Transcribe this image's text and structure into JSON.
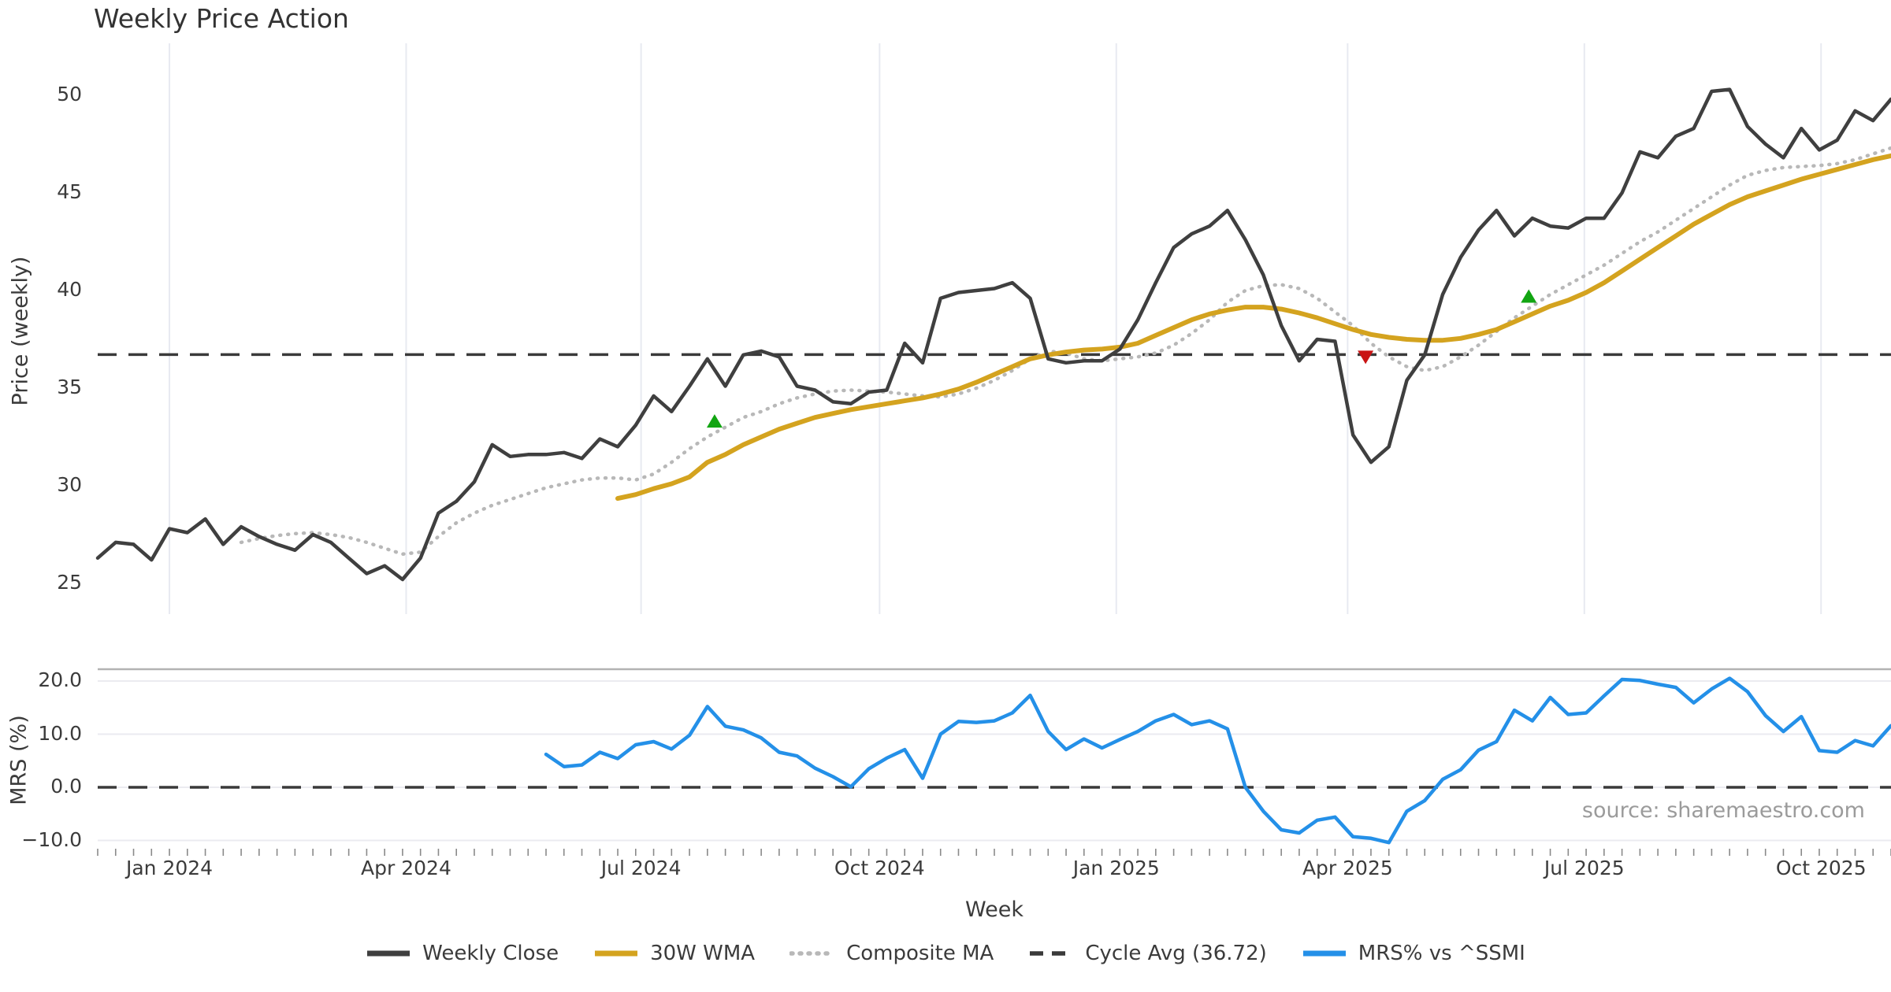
{
  "title": "Weekly Price Action",
  "source_note": "source: sharemaestro.com",
  "axes": {
    "price_label": "Price (weekly)",
    "mrs_label": "MRS (%)",
    "x_label": "Week"
  },
  "colors": {
    "weekly_close": "#3f3f3f",
    "wma_30w": "#d4a31f",
    "composite_ma": "#b8b8b8",
    "cycle_avg": "#3a3a3a",
    "mrs_line": "#2490e8",
    "buy_marker": "#12a512",
    "sell_marker": "#c91414",
    "gridline": "#e8eaf1",
    "panel_gridline": "#ebebf0",
    "panel_spine": "#b3b3b3",
    "tick_mark": "#8a8a8a"
  },
  "legend": [
    {
      "label": "Weekly Close",
      "color": "#3f3f3f",
      "style": "solid"
    },
    {
      "label": "30W WMA",
      "color": "#d4a31f",
      "style": "solid"
    },
    {
      "label": "Composite MA",
      "color": "#b8b8b8",
      "style": "dotted"
    },
    {
      "label": "Cycle Avg (36.72)",
      "color": "#3a3a3a",
      "style": "dashed"
    },
    {
      "label": "MRS% vs ^SSMI",
      "color": "#2490e8",
      "style": "solid"
    }
  ],
  "chart_data": [
    {
      "type": "line",
      "panel": "price",
      "title": "Weekly Price Action",
      "ylabel": "Price (weekly)",
      "ylim": [
        24.2,
        52.0
      ],
      "grid": "vertical-months-only",
      "yticks": [
        {
          "label": "50",
          "v": 50
        },
        {
          "label": "45",
          "v": 45
        },
        {
          "label": "40",
          "v": 40
        },
        {
          "label": "35",
          "v": 35
        },
        {
          "label": "30",
          "v": 30
        },
        {
          "label": "25",
          "v": 25
        }
      ],
      "x_months": [
        {
          "label": "Jan 2024",
          "week": 4.0
        },
        {
          "label": "Apr 2024",
          "week": 17.2
        },
        {
          "label": "Jul 2024",
          "week": 30.3
        },
        {
          "label": "Oct 2024",
          "week": 43.6
        },
        {
          "label": "Jan 2025",
          "week": 56.8
        },
        {
          "label": "Apr 2025",
          "week": 69.7
        },
        {
          "label": "Jul 2025",
          "week": 82.9
        },
        {
          "label": "Oct 2025",
          "week": 96.1
        }
      ],
      "cycle_avg": {
        "name": "Cycle Avg",
        "value": 36.72,
        "style": "dashed"
      },
      "series": [
        {
          "name": "Weekly Close",
          "style": "solid",
          "start_week": 0,
          "values": [
            26.3,
            27.1,
            27.0,
            26.2,
            27.8,
            27.6,
            28.3,
            27.0,
            27.9,
            27.4,
            27.0,
            26.7,
            27.5,
            27.1,
            26.3,
            25.5,
            25.9,
            25.2,
            26.3,
            28.6,
            29.2,
            30.2,
            32.1,
            31.5,
            31.6,
            31.6,
            31.7,
            31.4,
            32.4,
            32.0,
            33.1,
            34.6,
            33.8,
            35.1,
            36.5,
            35.1,
            36.7,
            36.9,
            36.6,
            35.1,
            34.9,
            34.3,
            34.2,
            34.8,
            34.9,
            37.3,
            36.3,
            39.6,
            39.9,
            40.0,
            40.1,
            40.4,
            39.6,
            36.5,
            36.3,
            36.4,
            36.4,
            37.0,
            38.5,
            40.4,
            42.2,
            42.9,
            43.3,
            44.1,
            42.6,
            40.8,
            38.2,
            36.4,
            37.5,
            37.4,
            32.6,
            31.2,
            32.0,
            35.4,
            36.7,
            39.8,
            41.7,
            43.1,
            44.1,
            42.8,
            43.7,
            43.3,
            43.2,
            43.7,
            43.7,
            45.0,
            47.1,
            46.8,
            47.9,
            48.3,
            50.2,
            50.3,
            48.4,
            47.5,
            46.8,
            48.3,
            47.2,
            47.7,
            49.2,
            48.7,
            49.8
          ]
        },
        {
          "name": "30W WMA",
          "style": "solid",
          "start_week": 29,
          "values": [
            29.35,
            29.55,
            29.85,
            30.1,
            30.45,
            31.2,
            31.6,
            32.1,
            32.5,
            32.9,
            33.2,
            33.5,
            33.7,
            33.9,
            34.05,
            34.2,
            34.35,
            34.5,
            34.7,
            34.95,
            35.3,
            35.7,
            36.1,
            36.5,
            36.7,
            36.85,
            36.95,
            37.0,
            37.1,
            37.3,
            37.7,
            38.1,
            38.5,
            38.8,
            39.0,
            39.15,
            39.15,
            39.05,
            38.85,
            38.6,
            38.3,
            38.0,
            37.75,
            37.6,
            37.5,
            37.45,
            37.45,
            37.55,
            37.75,
            38.0,
            38.4,
            38.8,
            39.2,
            39.5,
            39.9,
            40.4,
            41.0,
            41.6,
            42.2,
            42.8,
            43.4,
            43.9,
            44.4,
            44.8,
            45.1,
            45.4,
            45.7,
            45.95,
            46.2,
            46.45,
            46.7,
            46.9
          ]
        },
        {
          "name": "Composite MA",
          "style": "dotted",
          "start_week": 8,
          "values": [
            27.1,
            27.3,
            27.45,
            27.55,
            27.6,
            27.5,
            27.35,
            27.1,
            26.8,
            26.5,
            26.6,
            27.4,
            28.1,
            28.6,
            29.0,
            29.3,
            29.6,
            29.9,
            30.1,
            30.3,
            30.4,
            30.4,
            30.3,
            30.6,
            31.2,
            31.9,
            32.5,
            33.0,
            33.5,
            33.8,
            34.2,
            34.5,
            34.7,
            34.85,
            34.9,
            34.85,
            34.8,
            34.7,
            34.6,
            34.55,
            34.7,
            35.0,
            35.4,
            35.9,
            36.5,
            36.9,
            36.8,
            36.5,
            36.4,
            36.5,
            36.6,
            36.8,
            37.2,
            37.8,
            38.5,
            39.4,
            40.0,
            40.25,
            40.3,
            40.1,
            39.6,
            38.9,
            38.2,
            37.3,
            36.6,
            36.1,
            35.9,
            36.1,
            36.6,
            37.2,
            37.9,
            38.6,
            39.2,
            39.8,
            40.3,
            40.8,
            41.3,
            41.9,
            42.5,
            43.0,
            43.6,
            44.2,
            44.8,
            45.4,
            45.9,
            46.15,
            46.3,
            46.35,
            46.4,
            46.5,
            46.7,
            47.0,
            47.3
          ]
        }
      ],
      "markers": [
        {
          "type": "buy",
          "shape": "triangle-up",
          "week": 34.4,
          "value": 33.3
        },
        {
          "type": "sell",
          "shape": "triangle-down",
          "week": 70.7,
          "value": 36.6
        },
        {
          "type": "buy",
          "shape": "triangle-up",
          "week": 79.8,
          "value": 39.7
        }
      ]
    },
    {
      "type": "line",
      "panel": "mrs",
      "ylabel": "MRS (%)",
      "ylim": [
        -11.6,
        22.2
      ],
      "grid": "horizontal",
      "zero_line_dashed": true,
      "yticks": [
        {
          "label": "20.0",
          "v": 20
        },
        {
          "label": "10.0",
          "v": 10
        },
        {
          "label": "0.0",
          "v": 0
        },
        {
          "label": "−10.0",
          "v": -10
        }
      ],
      "series": [
        {
          "name": "MRS% vs ^SSMI",
          "style": "solid",
          "start_week": 25,
          "values": [
            6.2,
            3.9,
            4.2,
            6.6,
            5.4,
            8.0,
            8.6,
            7.2,
            9.8,
            15.2,
            11.5,
            10.8,
            9.3,
            6.6,
            5.9,
            3.6,
            2.0,
            0.1,
            3.5,
            5.5,
            7.1,
            1.7,
            10.0,
            12.4,
            12.2,
            12.5,
            14.0,
            17.3,
            10.5,
            7.1,
            9.1,
            7.4,
            9.0,
            10.5,
            12.5,
            13.7,
            11.8,
            12.5,
            11.0,
            0.0,
            -4.5,
            -8.0,
            -8.6,
            -6.2,
            -5.6,
            -9.3,
            -9.6,
            -10.4,
            -4.5,
            -2.5,
            1.5,
            3.3,
            7.0,
            8.6,
            14.5,
            12.5,
            16.9,
            13.7,
            14.0,
            17.2,
            20.3,
            20.1,
            19.4,
            18.8,
            15.9,
            18.5,
            20.5,
            18.0,
            13.5,
            10.5,
            13.3,
            6.9,
            6.6,
            8.8,
            7.8,
            11.6
          ]
        }
      ]
    }
  ]
}
